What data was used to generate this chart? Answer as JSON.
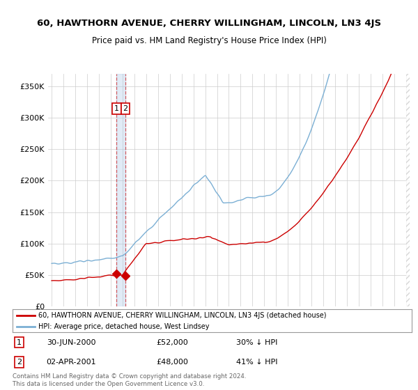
{
  "title": "60, HAWTHORN AVENUE, CHERRY WILLINGHAM, LINCOLN, LN3 4JS",
  "subtitle": "Price paid vs. HM Land Registry's House Price Index (HPI)",
  "legend_line1": "60, HAWTHORN AVENUE, CHERRY WILLINGHAM, LINCOLN, LN3 4JS (detached house)",
  "legend_line2": "HPI: Average price, detached house, West Lindsey",
  "transaction1_date": "30-JUN-2000",
  "transaction1_price": "£52,000",
  "transaction1_hpi": "30% ↓ HPI",
  "transaction2_date": "02-APR-2001",
  "transaction2_price": "£48,000",
  "transaction2_hpi": "41% ↓ HPI",
  "footer": "Contains HM Land Registry data © Crown copyright and database right 2024.\nThis data is licensed under the Open Government Licence v3.0.",
  "red_color": "#cc0000",
  "blue_color": "#7bafd4",
  "grid_color": "#cccccc",
  "background_color": "#ffffff",
  "ylim": [
    0,
    370000
  ],
  "yticks": [
    0,
    50000,
    100000,
    150000,
    200000,
    250000,
    300000,
    350000
  ],
  "transaction1_x": 2000.5,
  "transaction2_x": 2001.25,
  "transaction1_y": 52000,
  "transaction2_y": 48000,
  "xmin": 1994.7,
  "xmax": 2025.3
}
